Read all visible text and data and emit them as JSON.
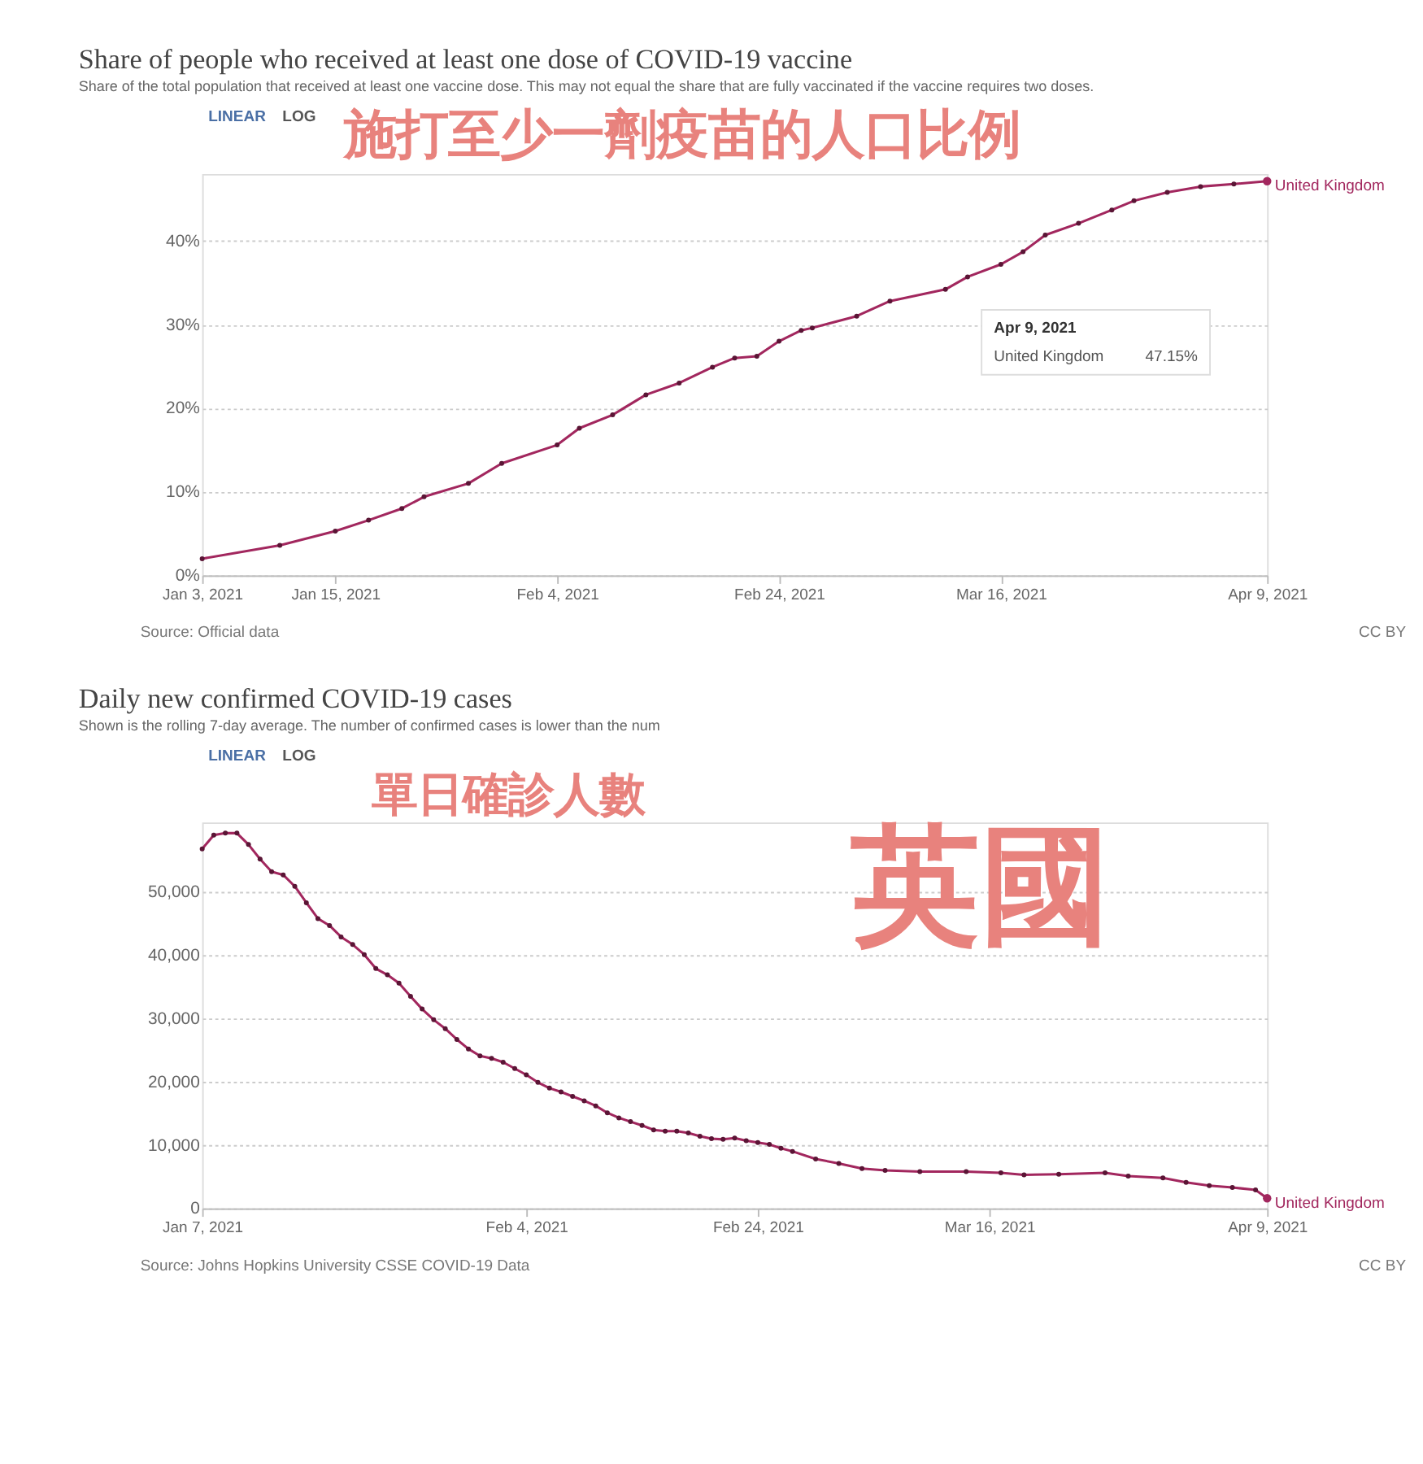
{
  "chart_data": [
    {
      "type": "line",
      "title": "Share of people who received at least one dose of COVID-19 vaccine",
      "subtitle": "Share of the total population that received at least one vaccine dose. This may not equal the share that are fully vaccinated if the vaccine requires two doses.",
      "annotations": [
        "LINEAR",
        "LOG",
        "施打至少一劑疫苗的人口比例",
        "Source: Official data",
        "CC BY",
        "Apr 9, 2021",
        "United Kingdom",
        "47.15%"
      ],
      "x": [
        "2021-01-03",
        "2021-01-10",
        "2021-01-15",
        "2021-01-18",
        "2021-01-21",
        "2021-01-23",
        "2021-01-27",
        "2021-01-30",
        "2021-02-04",
        "2021-02-06",
        "2021-02-09",
        "2021-02-12",
        "2021-02-15",
        "2021-02-18",
        "2021-02-20",
        "2021-02-22",
        "2021-02-24",
        "2021-02-26",
        "2021-02-27",
        "2021-03-03",
        "2021-03-06",
        "2021-03-11",
        "2021-03-13",
        "2021-03-16",
        "2021-03-18",
        "2021-03-20",
        "2021-03-23",
        "2021-03-26",
        "2021-03-28",
        "2021-03-31",
        "2021-04-03",
        "2021-04-06",
        "2021-04-09"
      ],
      "series": [
        {
          "name": "United Kingdom",
          "color": "#a2275e",
          "values": [
            2.0,
            3.6,
            5.3,
            6.6,
            8.0,
            9.4,
            11.0,
            13.4,
            15.6,
            17.6,
            19.2,
            21.6,
            23.0,
            24.9,
            26.0,
            26.2,
            28.0,
            29.3,
            29.6,
            31.0,
            32.8,
            34.2,
            35.7,
            37.2,
            38.7,
            40.7,
            42.1,
            43.7,
            44.8,
            45.8,
            46.5,
            46.8,
            47.15
          ]
        }
      ],
      "xlim": [
        "2021-01-03",
        "2021-04-09"
      ],
      "xticks": [
        {
          "value": "2021-01-03",
          "label": "Jan 3, 2021"
        },
        {
          "value": "2021-01-15",
          "label": "Jan 15, 2021"
        },
        {
          "value": "2021-02-04",
          "label": "Feb 4, 2021"
        },
        {
          "value": "2021-02-24",
          "label": "Feb 24, 2021"
        },
        {
          "value": "2021-03-16",
          "label": "Mar 16, 2021"
        },
        {
          "value": "2021-04-09",
          "label": "Apr 9, 2021"
        }
      ],
      "ylim": [
        0,
        48
      ],
      "yticks": [
        {
          "value": 0,
          "label": "0%"
        },
        {
          "value": 10,
          "label": "10%"
        },
        {
          "value": 20,
          "label": "20%"
        },
        {
          "value": 30,
          "label": "30%"
        },
        {
          "value": 40,
          "label": "40%"
        }
      ],
      "grid": "y",
      "marker": "circle",
      "line_style": "solid"
    },
    {
      "type": "line",
      "title": "Daily new confirmed COVID-19 cases",
      "subtitle": "Shown is the rolling 7-day average. The number of confirmed cases is lower than the num",
      "annotations": [
        "LINEAR",
        "LOG",
        "單日確診人數",
        "英國",
        "Source: Johns Hopkins University CSSE COVID-19 Data",
        "CC BY"
      ],
      "x": [
        "2021-01-07",
        "2021-01-08",
        "2021-01-09",
        "2021-01-10",
        "2021-01-11",
        "2021-01-12",
        "2021-01-13",
        "2021-01-14",
        "2021-01-15",
        "2021-01-16",
        "2021-01-17",
        "2021-01-18",
        "2021-01-19",
        "2021-01-20",
        "2021-01-21",
        "2021-01-22",
        "2021-01-23",
        "2021-01-24",
        "2021-01-25",
        "2021-01-26",
        "2021-01-27",
        "2021-01-28",
        "2021-01-29",
        "2021-01-30",
        "2021-01-31",
        "2021-02-01",
        "2021-02-02",
        "2021-02-03",
        "2021-02-04",
        "2021-02-05",
        "2021-02-06",
        "2021-02-07",
        "2021-02-08",
        "2021-02-09",
        "2021-02-10",
        "2021-02-11",
        "2021-02-12",
        "2021-02-13",
        "2021-02-14",
        "2021-02-15",
        "2021-02-16",
        "2021-02-17",
        "2021-02-18",
        "2021-02-19",
        "2021-02-20",
        "2021-02-21",
        "2021-02-22",
        "2021-02-23",
        "2021-02-24",
        "2021-02-25",
        "2021-02-26",
        "2021-02-27",
        "2021-03-01",
        "2021-03-03",
        "2021-03-05",
        "2021-03-07",
        "2021-03-10",
        "2021-03-14",
        "2021-03-17",
        "2021-03-19",
        "2021-03-22",
        "2021-03-26",
        "2021-03-28",
        "2021-03-31",
        "2021-04-02",
        "2021-04-04",
        "2021-04-06",
        "2021-04-08",
        "2021-04-09"
      ],
      "series": [
        {
          "name": "United Kingdom",
          "color": "#a2275e",
          "values": [
            56800,
            59000,
            59300,
            59300,
            57500,
            55200,
            53200,
            52700,
            50900,
            48300,
            45800,
            44700,
            42900,
            41700,
            40100,
            37900,
            36900,
            35600,
            33500,
            31500,
            29800,
            28400,
            26700,
            25200,
            24100,
            23700,
            23100,
            22100,
            21100,
            19900,
            19000,
            18400,
            17700,
            17000,
            16200,
            15100,
            14300,
            13700,
            13100,
            12400,
            12200,
            12200,
            11900,
            11400,
            11000,
            10900,
            11100,
            10700,
            10400,
            10100,
            9500,
            9000,
            7800,
            7100,
            6300,
            6000,
            5800,
            5800,
            5600,
            5300,
            5400,
            5600,
            5100,
            4800,
            4100,
            3600,
            3300,
            2900,
            1600
          ]
        }
      ],
      "xlim": [
        "2021-01-07",
        "2021-04-09"
      ],
      "xticks": [
        {
          "value": "2021-01-07",
          "label": "Jan 7, 2021"
        },
        {
          "value": "2021-02-04",
          "label": "Feb 4, 2021"
        },
        {
          "value": "2021-02-24",
          "label": "Feb 24, 2021"
        },
        {
          "value": "2021-03-16",
          "label": "Mar 16, 2021"
        },
        {
          "value": "2021-04-09",
          "label": "Apr 9, 2021"
        }
      ],
      "ylim": [
        0,
        61000
      ],
      "yticks": [
        0,
        {
          "value": 10000,
          "label": "10,000"
        },
        {
          "value": 20000,
          "label": "20,000"
        },
        {
          "value": 30000,
          "label": "30,000"
        },
        {
          "value": 40000,
          "label": "40,000"
        },
        {
          "value": 50000,
          "label": "50,000"
        }
      ],
      "grid": "y",
      "marker": "circle",
      "line_style": "solid"
    }
  ]
}
